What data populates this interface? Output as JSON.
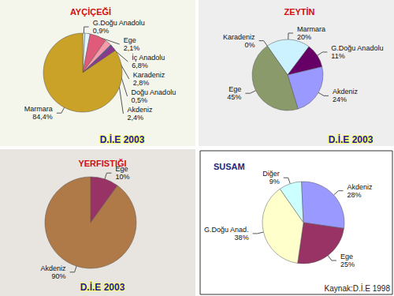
{
  "chart_data": [
    {
      "type": "pie",
      "title": "AYÇİÇEĞİ",
      "categories": [
        "G.Doğu Anadolu",
        "Ege",
        "İç Anadolu",
        "Karadeniz",
        "Doğu Anadolu",
        "Akdeniz",
        "Marmara"
      ],
      "values": [
        0.9,
        2.1,
        6.8,
        2.8,
        0.5,
        2.4,
        84.4
      ],
      "value_labels": [
        "0,9%",
        "2,1%",
        "6,8%",
        "2,8%",
        "0,5%",
        "2,4%",
        "84,4%"
      ],
      "colors": [
        "#cfeff2",
        "#e6f6ff",
        "#e05a7a",
        "#f59aa8",
        "#3050c0",
        "#8a3a8c",
        "#c9a227"
      ],
      "data_labels": true,
      "annotations": [
        "D.İ.E 2003"
      ]
    },
    {
      "type": "pie",
      "title": "ZEYTİN",
      "categories": [
        "Karadeniz",
        "Marmara",
        "G.Doğu Anadolu",
        "Akdeniz",
        "Ege"
      ],
      "values": [
        0,
        20,
        11,
        24,
        45
      ],
      "value_labels": [
        "0%",
        "20%",
        "11%",
        "24%",
        "45%"
      ],
      "colors": [
        "#ffffff",
        "#ccf2ff",
        "#660066",
        "#9999ff",
        "#8a9a6a"
      ],
      "data_labels": true,
      "annotations": [
        "D.İ.E 2003"
      ]
    },
    {
      "type": "pie",
      "title": "YERFISTIĞI",
      "categories": [
        "Ege",
        "Akdeniz"
      ],
      "values": [
        10,
        90
      ],
      "value_labels": [
        "10%",
        "90%"
      ],
      "colors": [
        "#993366",
        "#b07a48"
      ],
      "data_labels": true,
      "annotations": [
        "D.İ.E 2003"
      ]
    },
    {
      "type": "pie",
      "title": "SUSAM",
      "categories": [
        "Diğer",
        "Akdeniz",
        "Ege",
        "G.Doğu Anad."
      ],
      "values": [
        9,
        28,
        25,
        38
      ],
      "value_labels": [
        "9%",
        "28%",
        "25%",
        "38%"
      ],
      "colors": [
        "#ccffff",
        "#9999ff",
        "#993366",
        "#ffffcc"
      ],
      "data_labels": true,
      "annotations": [
        "Kaynak:D.İ.E 1998"
      ]
    }
  ]
}
